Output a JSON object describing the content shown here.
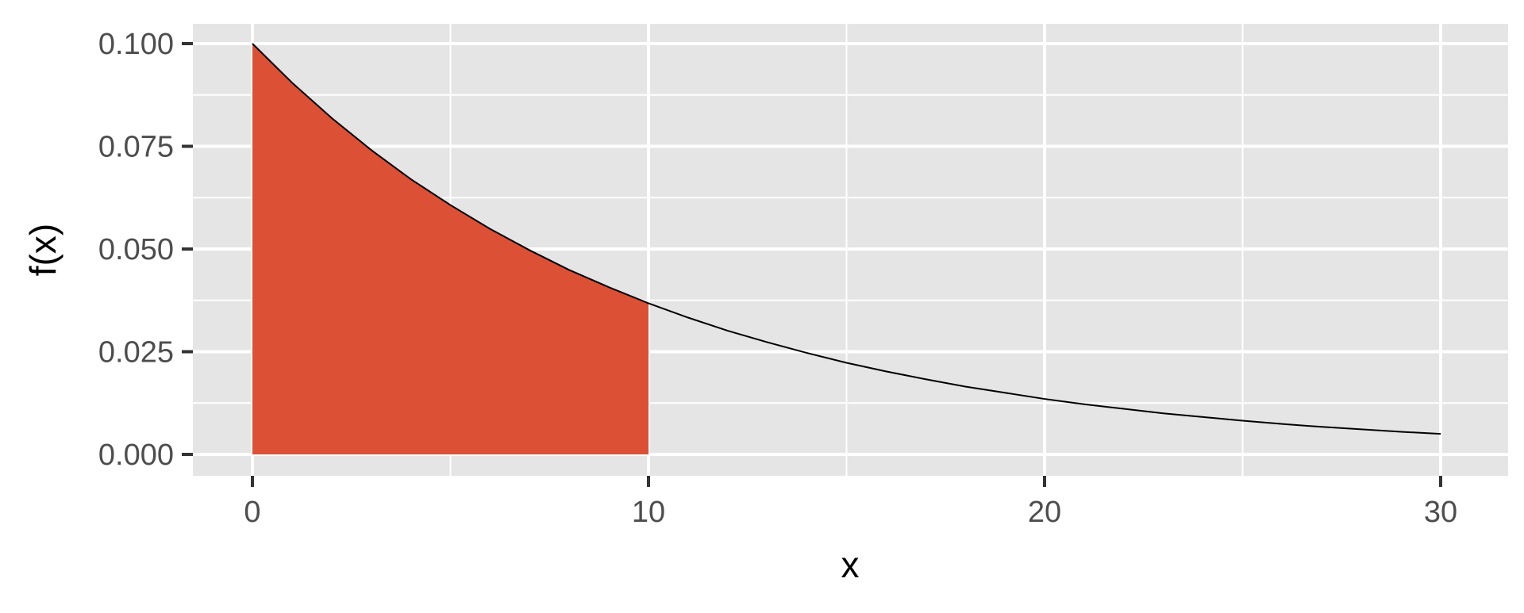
{
  "chart_data": {
    "type": "area",
    "title": "",
    "xlabel": "x",
    "ylabel": "f(x)",
    "xlim": [
      0,
      30
    ],
    "ylim": [
      0,
      0.1
    ],
    "x_ticks": [
      0,
      10,
      20,
      30
    ],
    "x_tick_labels": [
      "0",
      "10",
      "20",
      "30"
    ],
    "y_ticks": [
      0,
      0.025,
      0.05,
      0.075,
      0.1
    ],
    "y_tick_labels": [
      "0.000",
      "0.025",
      "0.050",
      "0.075",
      "0.100"
    ],
    "grid": true,
    "legend": "none",
    "curve": {
      "color": "#000000",
      "x": [
        0,
        1,
        2,
        3,
        4,
        5,
        6,
        7,
        8,
        9,
        10,
        11,
        12,
        13,
        14,
        15,
        16,
        17,
        18,
        19,
        20,
        21,
        22,
        23,
        24,
        25,
        26,
        27,
        28,
        29,
        30
      ],
      "y": [
        0.1,
        0.0905,
        0.0819,
        0.0741,
        0.067,
        0.0607,
        0.0549,
        0.0497,
        0.0449,
        0.0407,
        0.0368,
        0.0333,
        0.0301,
        0.0273,
        0.0247,
        0.0223,
        0.0202,
        0.0183,
        0.0165,
        0.015,
        0.0135,
        0.0122,
        0.0111,
        0.01,
        0.0091,
        0.0082,
        0.0074,
        0.0067,
        0.0061,
        0.0055,
        0.005
      ]
    },
    "shaded_region": {
      "from": 0,
      "to": 10,
      "color": "#dc5036"
    },
    "colors": {
      "panel_background": "#e5e5e5",
      "grid": "#ffffff",
      "tick": "#333333"
    }
  }
}
